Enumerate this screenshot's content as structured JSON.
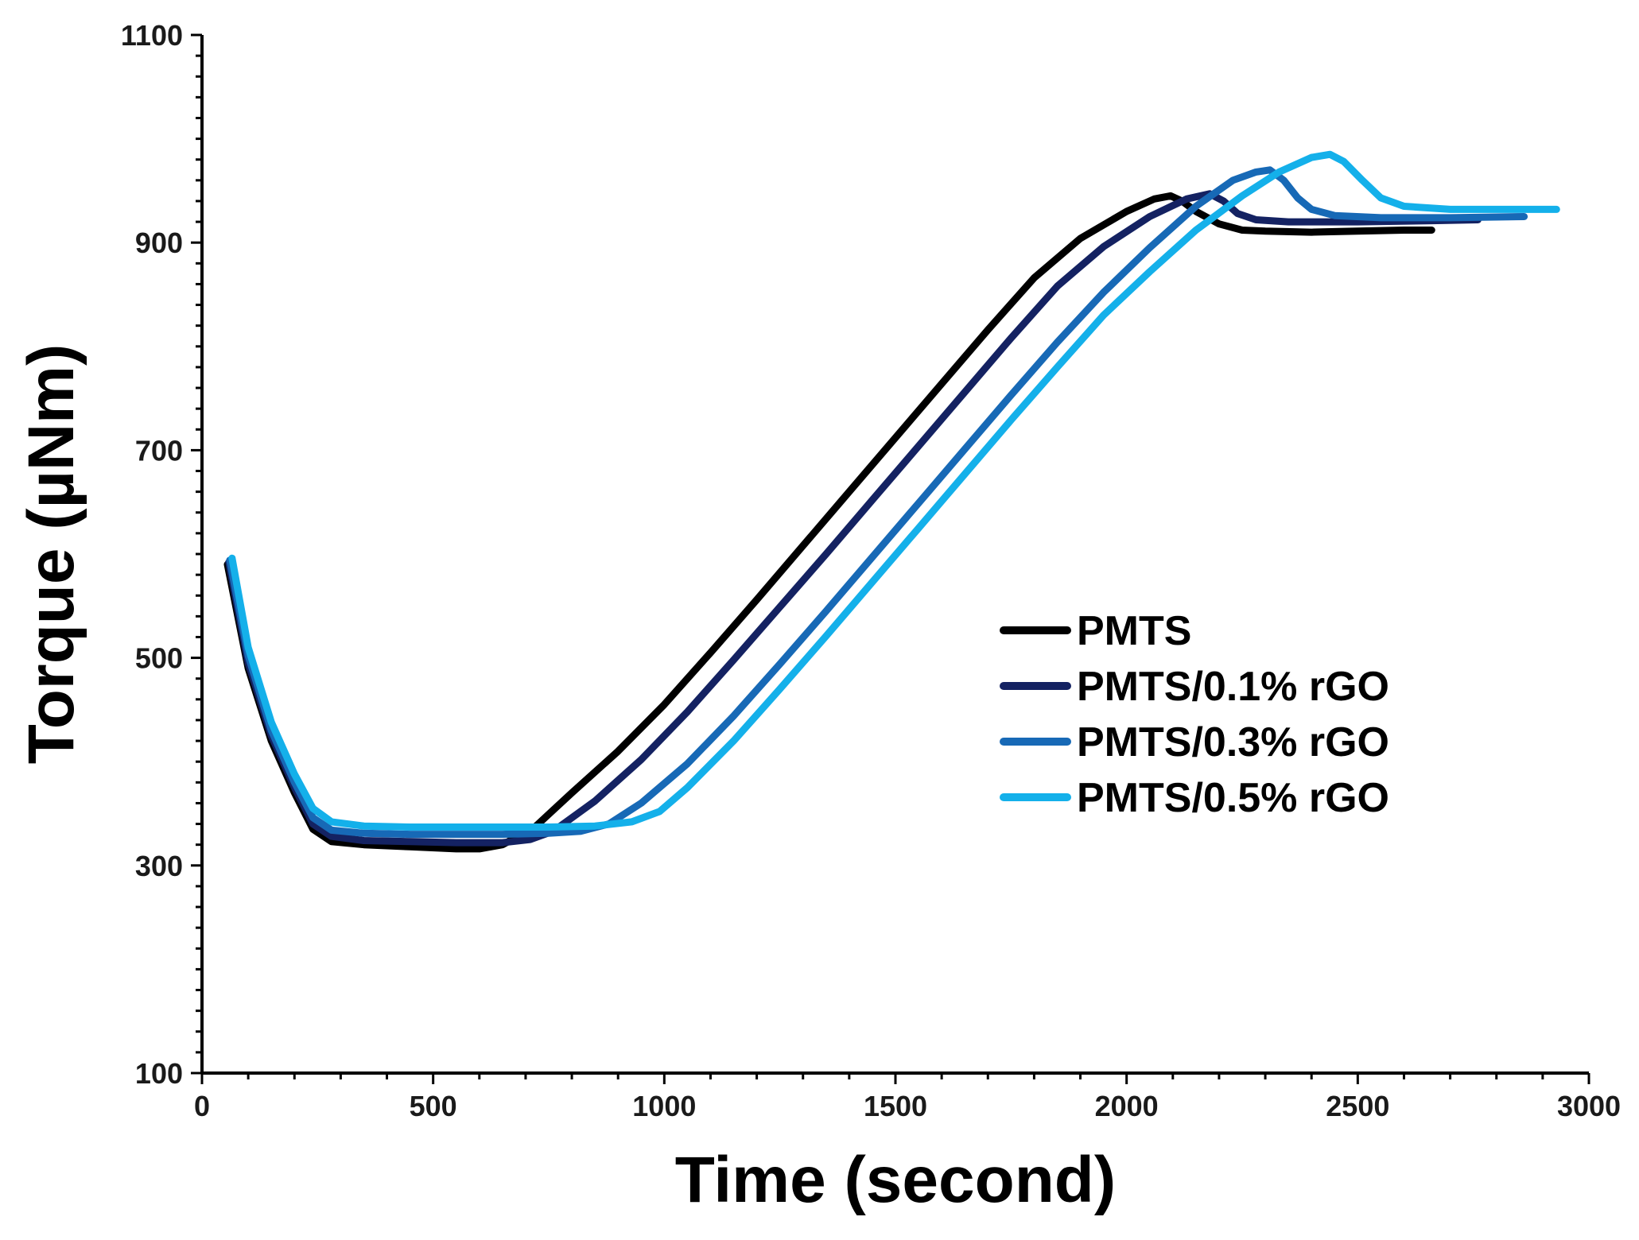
{
  "chart_data": {
    "type": "line",
    "title": "",
    "xlabel": "Time (second)",
    "ylabel": "Torque (µNm)",
    "xlim": [
      0,
      3000
    ],
    "ylim": [
      100,
      1100
    ],
    "xticks": [
      0,
      500,
      1000,
      1500,
      2000,
      2500,
      3000
    ],
    "xtick_labels": [
      "0",
      "500",
      "1000",
      "1500",
      "2000",
      "2500",
      "3000"
    ],
    "yticks": [
      100,
      300,
      500,
      700,
      900,
      1100
    ],
    "ytick_labels": [
      "100",
      "300",
      "500",
      "700",
      "900",
      "1100"
    ],
    "x_minor_step": 100,
    "y_minor_step": 20,
    "grid": false,
    "legend_position": "middle-right",
    "series": [
      {
        "name": "PMTS",
        "color": "#000000",
        "points": [
          [
            55,
            590
          ],
          [
            100,
            490
          ],
          [
            150,
            420
          ],
          [
            200,
            370
          ],
          [
            240,
            335
          ],
          [
            280,
            323
          ],
          [
            350,
            320
          ],
          [
            450,
            318
          ],
          [
            550,
            316
          ],
          [
            600,
            316
          ],
          [
            650,
            320
          ],
          [
            720,
            337
          ],
          [
            800,
            370
          ],
          [
            900,
            410
          ],
          [
            1000,
            455
          ],
          [
            1100,
            505
          ],
          [
            1200,
            556
          ],
          [
            1300,
            608
          ],
          [
            1400,
            660
          ],
          [
            1500,
            712
          ],
          [
            1600,
            764
          ],
          [
            1700,
            816
          ],
          [
            1800,
            866
          ],
          [
            1900,
            904
          ],
          [
            2000,
            930
          ],
          [
            2060,
            942
          ],
          [
            2095,
            945
          ],
          [
            2120,
            940
          ],
          [
            2150,
            930
          ],
          [
            2200,
            918
          ],
          [
            2250,
            912
          ],
          [
            2300,
            911
          ],
          [
            2400,
            910
          ],
          [
            2500,
            911
          ],
          [
            2600,
            912
          ],
          [
            2660,
            912
          ]
        ]
      },
      {
        "name": "PMTS/0.1% rGO",
        "color": "#142262",
        "points": [
          [
            58,
            592
          ],
          [
            100,
            495
          ],
          [
            150,
            425
          ],
          [
            200,
            375
          ],
          [
            240,
            340
          ],
          [
            280,
            328
          ],
          [
            350,
            324
          ],
          [
            450,
            323
          ],
          [
            550,
            322
          ],
          [
            650,
            322
          ],
          [
            710,
            325
          ],
          [
            760,
            333
          ],
          [
            850,
            362
          ],
          [
            950,
            402
          ],
          [
            1050,
            448
          ],
          [
            1150,
            498
          ],
          [
            1250,
            549
          ],
          [
            1350,
            600
          ],
          [
            1450,
            652
          ],
          [
            1550,
            704
          ],
          [
            1650,
            756
          ],
          [
            1750,
            808
          ],
          [
            1850,
            858
          ],
          [
            1950,
            896
          ],
          [
            2050,
            925
          ],
          [
            2130,
            942
          ],
          [
            2180,
            947
          ],
          [
            2210,
            940
          ],
          [
            2240,
            928
          ],
          [
            2280,
            922
          ],
          [
            2350,
            920
          ],
          [
            2500,
            920
          ],
          [
            2650,
            921
          ],
          [
            2760,
            922
          ]
        ]
      },
      {
        "name": "PMTS/0.3% rGO",
        "color": "#1769b6",
        "points": [
          [
            60,
            594
          ],
          [
            100,
            502
          ],
          [
            150,
            430
          ],
          [
            200,
            380
          ],
          [
            240,
            346
          ],
          [
            280,
            334
          ],
          [
            350,
            331
          ],
          [
            450,
            330
          ],
          [
            550,
            330
          ],
          [
            650,
            330
          ],
          [
            750,
            331
          ],
          [
            820,
            333
          ],
          [
            880,
            340
          ],
          [
            950,
            360
          ],
          [
            1050,
            398
          ],
          [
            1150,
            444
          ],
          [
            1250,
            494
          ],
          [
            1350,
            545
          ],
          [
            1450,
            597
          ],
          [
            1550,
            649
          ],
          [
            1650,
            701
          ],
          [
            1750,
            753
          ],
          [
            1850,
            804
          ],
          [
            1950,
            852
          ],
          [
            2050,
            895
          ],
          [
            2150,
            935
          ],
          [
            2230,
            960
          ],
          [
            2280,
            968
          ],
          [
            2310,
            970
          ],
          [
            2340,
            960
          ],
          [
            2370,
            943
          ],
          [
            2400,
            932
          ],
          [
            2450,
            926
          ],
          [
            2550,
            924
          ],
          [
            2700,
            924
          ],
          [
            2860,
            925
          ]
        ]
      },
      {
        "name": "PMTS/0.5% rGO",
        "color": "#14b0ea",
        "points": [
          [
            65,
            596
          ],
          [
            100,
            510
          ],
          [
            150,
            438
          ],
          [
            200,
            388
          ],
          [
            240,
            355
          ],
          [
            280,
            342
          ],
          [
            350,
            338
          ],
          [
            450,
            337
          ],
          [
            550,
            337
          ],
          [
            650,
            337
          ],
          [
            750,
            337
          ],
          [
            850,
            338
          ],
          [
            930,
            342
          ],
          [
            990,
            352
          ],
          [
            1050,
            375
          ],
          [
            1150,
            420
          ],
          [
            1250,
            470
          ],
          [
            1350,
            521
          ],
          [
            1450,
            573
          ],
          [
            1550,
            625
          ],
          [
            1650,
            677
          ],
          [
            1750,
            729
          ],
          [
            1850,
            780
          ],
          [
            1950,
            830
          ],
          [
            2050,
            872
          ],
          [
            2150,
            912
          ],
          [
            2250,
            945
          ],
          [
            2330,
            968
          ],
          [
            2400,
            982
          ],
          [
            2440,
            985
          ],
          [
            2470,
            978
          ],
          [
            2510,
            960
          ],
          [
            2550,
            943
          ],
          [
            2600,
            935
          ],
          [
            2700,
            932
          ],
          [
            2800,
            932
          ],
          [
            2930,
            932
          ]
        ]
      }
    ]
  }
}
